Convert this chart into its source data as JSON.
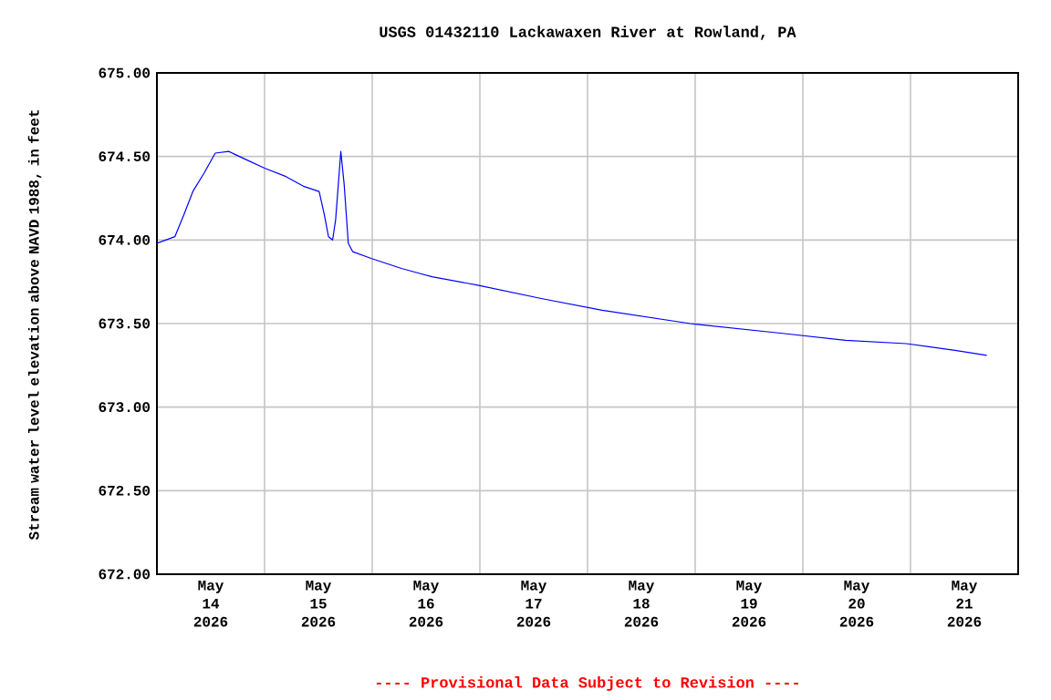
{
  "chart_data": {
    "type": "line",
    "title": "USGS 01432110 Lackawaxen River at Rowland, PA",
    "ylabel": "Stream water level elevation above NAVD 1988, in feet",
    "annotations": [
      "---- Provisional Data Subject to Revision ----"
    ],
    "x": [
      "2026-05-14T00:00",
      "2026-05-14T04:00",
      "2026-05-14T06:00",
      "2026-05-14T08:00",
      "2026-05-14T10:30",
      "2026-05-14T13:00",
      "2026-05-14T16:00",
      "2026-05-14T20:00",
      "2026-05-15T00:00",
      "2026-05-15T04:45",
      "2026-05-15T08:50",
      "2026-05-15T12:10",
      "2026-05-15T13:20",
      "2026-05-15T14:15",
      "2026-05-15T15:10",
      "2026-05-15T15:50",
      "2026-05-15T17:00",
      "2026-05-15T17:45",
      "2026-05-15T18:40",
      "2026-05-15T19:40",
      "2026-05-15T23:45",
      "2026-05-16T06:30",
      "2026-05-16T10:35",
      "2026-05-16T13:20",
      "2026-05-16T23:30",
      "2026-05-17T13:40",
      "2026-05-18T03:15",
      "2026-05-18T22:55",
      "2026-05-19T19:55",
      "2026-05-20T09:30",
      "2026-05-20T23:05",
      "2026-05-21T09:55",
      "2026-05-21T17:00"
    ],
    "series": [
      {
        "color": "#0000ff",
        "values": [
          673.98,
          674.02,
          674.15,
          674.29,
          674.4,
          674.52,
          674.53,
          674.48,
          674.43,
          674.38,
          674.32,
          674.29,
          674.15,
          674.02,
          674.0,
          674.12,
          674.53,
          674.33,
          673.98,
          673.93,
          673.89,
          673.83,
          673.8,
          673.78,
          673.73,
          673.65,
          673.58,
          673.5,
          673.44,
          673.4,
          673.38,
          673.34,
          673.31
        ]
      }
    ],
    "xlim": [
      "2026-05-14T00:00",
      "2026-05-22T00:00"
    ],
    "xticks": [
      {
        "value": "2026-05-14T12:00",
        "label": "May 14 2026"
      },
      {
        "value": "2026-05-15T12:00",
        "label": "May 15 2026"
      },
      {
        "value": "2026-05-16T12:00",
        "label": "May 16 2026"
      },
      {
        "value": "2026-05-17T12:00",
        "label": "May 17 2026"
      },
      {
        "value": "2026-05-18T12:00",
        "label": "May 18 2026"
      },
      {
        "value": "2026-05-19T12:00",
        "label": "May 19 2026"
      },
      {
        "value": "2026-05-20T12:00",
        "label": "May 20 2026"
      },
      {
        "value": "2026-05-21T12:00",
        "label": "May 21 2026"
      },
      {
        "value": "2026-05-15T00:00",
        "label": null
      },
      {
        "value": "2026-05-16T00:00",
        "label": null
      },
      {
        "value": "2026-05-17T00:00",
        "label": null
      },
      {
        "value": "2026-05-18T00:00",
        "label": null
      },
      {
        "value": "2026-05-19T00:00",
        "label": null
      },
      {
        "value": "2026-05-20T00:00",
        "label": null
      },
      {
        "value": "2026-05-21T00:00",
        "label": null
      }
    ],
    "ylim": [
      672,
      675
    ],
    "yticks": [
      {
        "value": 672,
        "label": "672.00"
      },
      {
        "value": 672.5,
        "label": "672.50"
      },
      {
        "value": 673,
        "label": "673.00"
      },
      {
        "value": 673.5,
        "label": "673.50"
      },
      {
        "value": 674,
        "label": "674.00"
      },
      {
        "value": 674.5,
        "label": "674.50"
      },
      {
        "value": 675,
        "label": "675.00"
      }
    ],
    "grid": true
  }
}
